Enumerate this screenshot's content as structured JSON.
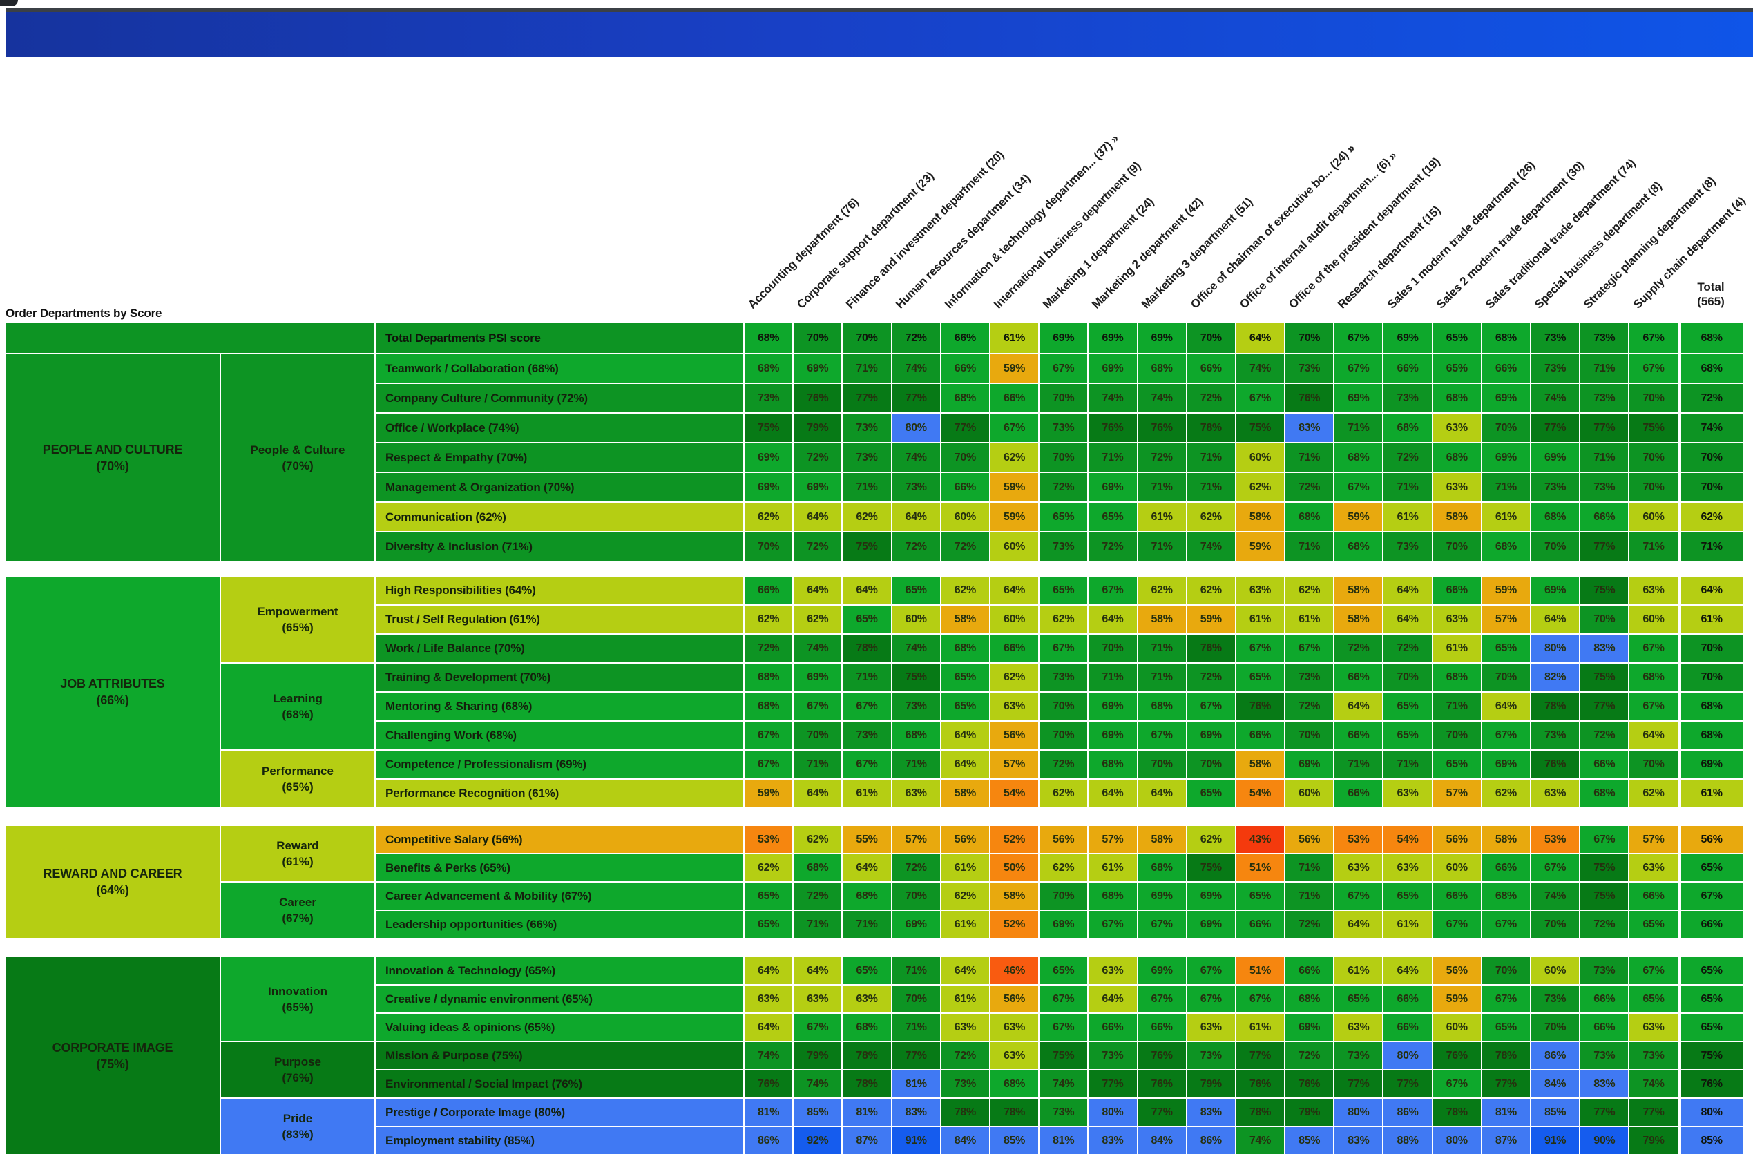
{
  "title": "Order Departments by Score",
  "banner": {
    "top_edge_color": "#3b4046",
    "gradient_left": "#16339e",
    "gradient_mid": "#1840c6",
    "gradient_right": "#0f55e8"
  },
  "palette": {
    "text_dark": "#26300f",
    "white_grid": "#ffffff"
  },
  "chart_data": {
    "type": "heatmap",
    "title": "Order Departments by Score",
    "legend_note": "cell color encodes score: red <45%, orange 45-59%, yellow-green 60-64%, green 65-79%, blue 80%+",
    "color_scale": {
      "ge90": "#155cee",
      "ge80": "#4079f3",
      "ge75": "#077a16",
      "ge70": "#0d9423",
      "ge65": "#0ea82c",
      "ge60": "#b5ce13",
      "ge55": "#e8a90e",
      "ge50": "#f6860f",
      "ge45": "#f95b10",
      "lt45": "#f43a0d"
    },
    "columns": [
      "Accounting department (76)",
      "Corporate support department (23)",
      "Finance and investment department (20)",
      "Human resources department (34)",
      "Information & technology departmen... (37) »",
      "International business department (9)",
      "Marketing 1 department (24)",
      "Marketing 2 department (42)",
      "Marketing 3 department (51)",
      "Office of chairman of executive bo... (24) »",
      "Office of internal audit departmen... (6) »",
      "Office of the president department (19)",
      "Research department (15)",
      "Sales 1 modern trade department (26)",
      "Sales 2 modern trade department (30)",
      "Sales traditional trade department (74)",
      "Special business department (8)",
      "Strategic planning department (8)",
      "Supply chain department (4)",
      "Total (565)"
    ],
    "total_header": {
      "line1": "Total",
      "line2": "(565)"
    },
    "total_row": {
      "label": "Total Departments PSI score",
      "tone": 70,
      "values": [
        68,
        70,
        70,
        72,
        66,
        61,
        69,
        69,
        69,
        70,
        64,
        70,
        67,
        69,
        65,
        68,
        73,
        73,
        67,
        68
      ]
    },
    "sections": [
      {
        "name": "PEOPLE AND CULTURE",
        "score": "70%",
        "subgroups": [
          {
            "name": "People & Culture",
            "score": "70%",
            "rows": [
              {
                "label": "Teamwork / Collaboration (68%)",
                "pct": 68,
                "values": [
                  68,
                  69,
                  71,
                  74,
                  66,
                  59,
                  67,
                  69,
                  68,
                  66,
                  74,
                  73,
                  67,
                  66,
                  65,
                  66,
                  73,
                  71,
                  67,
                  68
                ]
              },
              {
                "label": "Company Culture / Community (72%)",
                "pct": 72,
                "values": [
                  73,
                  76,
                  77,
                  77,
                  68,
                  66,
                  70,
                  74,
                  74,
                  72,
                  67,
                  76,
                  69,
                  73,
                  68,
                  69,
                  74,
                  73,
                  70,
                  72
                ]
              },
              {
                "label": "Office / Workplace (74%)",
                "pct": 74,
                "values": [
                  75,
                  79,
                  73,
                  80,
                  77,
                  67,
                  73,
                  76,
                  76,
                  78,
                  75,
                  83,
                  71,
                  68,
                  63,
                  70,
                  77,
                  77,
                  75,
                  74
                ]
              },
              {
                "label": "Respect & Empathy (70%)",
                "pct": 70,
                "values": [
                  69,
                  72,
                  73,
                  74,
                  70,
                  62,
                  70,
                  71,
                  72,
                  71,
                  60,
                  71,
                  68,
                  72,
                  68,
                  69,
                  69,
                  71,
                  70,
                  70
                ]
              },
              {
                "label": "Management & Organization (70%)",
                "pct": 70,
                "values": [
                  69,
                  69,
                  71,
                  73,
                  66,
                  59,
                  72,
                  69,
                  71,
                  71,
                  62,
                  72,
                  67,
                  71,
                  63,
                  71,
                  73,
                  73,
                  70,
                  70
                ]
              },
              {
                "label": "Communication (62%)",
                "pct": 62,
                "values": [
                  62,
                  64,
                  62,
                  64,
                  60,
                  59,
                  65,
                  65,
                  61,
                  62,
                  58,
                  68,
                  59,
                  61,
                  58,
                  61,
                  68,
                  66,
                  60,
                  62
                ]
              },
              {
                "label": "Diversity & Inclusion (71%)",
                "pct": 71,
                "values": [
                  70,
                  72,
                  75,
                  72,
                  72,
                  60,
                  73,
                  72,
                  71,
                  74,
                  59,
                  71,
                  68,
                  73,
                  70,
                  68,
                  70,
                  77,
                  71,
                  71
                ]
              }
            ]
          }
        ]
      },
      {
        "name": "JOB ATTRIBUTES",
        "score": "66%",
        "subgroups": [
          {
            "name": "Empowerment",
            "score": "65%",
            "tone": 64,
            "rows": [
              {
                "label": "High Responsibilities (64%)",
                "pct": 64,
                "values": [
                  66,
                  64,
                  64,
                  65,
                  62,
                  64,
                  65,
                  67,
                  62,
                  62,
                  63,
                  62,
                  58,
                  64,
                  66,
                  59,
                  69,
                  75,
                  63,
                  64
                ]
              },
              {
                "label": "Trust / Self Regulation (61%)",
                "pct": 61,
                "values": [
                  62,
                  62,
                  65,
                  60,
                  58,
                  60,
                  62,
                  64,
                  58,
                  59,
                  61,
                  61,
                  58,
                  64,
                  63,
                  57,
                  64,
                  70,
                  60,
                  61
                ]
              },
              {
                "label": "Work / Life Balance (70%)",
                "pct": 70,
                "values": [
                  72,
                  74,
                  78,
                  74,
                  68,
                  66,
                  67,
                  70,
                  71,
                  76,
                  67,
                  67,
                  72,
                  72,
                  61,
                  65,
                  80,
                  83,
                  67,
                  70
                ]
              }
            ]
          },
          {
            "name": "Learning",
            "score": "68%",
            "rows": [
              {
                "label": "Training & Development (70%)",
                "pct": 70,
                "values": [
                  68,
                  69,
                  71,
                  75,
                  65,
                  62,
                  73,
                  71,
                  71,
                  72,
                  65,
                  73,
                  66,
                  70,
                  68,
                  70,
                  82,
                  75,
                  68,
                  70
                ]
              },
              {
                "label": "Mentoring & Sharing (68%)",
                "pct": 68,
                "values": [
                  68,
                  67,
                  67,
                  73,
                  65,
                  63,
                  70,
                  69,
                  68,
                  67,
                  76,
                  72,
                  64,
                  65,
                  71,
                  64,
                  78,
                  77,
                  67,
                  68
                ]
              },
              {
                "label": "Challenging Work (68%)",
                "pct": 68,
                "values": [
                  67,
                  70,
                  73,
                  68,
                  64,
                  56,
                  70,
                  69,
                  67,
                  69,
                  66,
                  70,
                  66,
                  65,
                  70,
                  67,
                  73,
                  72,
                  64,
                  68
                ]
              }
            ]
          },
          {
            "name": "Performance",
            "score": "65%",
            "tone": 64,
            "rows": [
              {
                "label": "Competence / Professionalism (69%)",
                "pct": 69,
                "values": [
                  67,
                  71,
                  67,
                  71,
                  64,
                  57,
                  72,
                  68,
                  70,
                  70,
                  58,
                  69,
                  71,
                  71,
                  65,
                  69,
                  76,
                  66,
                  70,
                  69
                ]
              },
              {
                "label": "Performance Recognition (61%)",
                "pct": 61,
                "values": [
                  59,
                  64,
                  61,
                  63,
                  58,
                  54,
                  62,
                  64,
                  64,
                  65,
                  54,
                  60,
                  66,
                  63,
                  57,
                  62,
                  63,
                  68,
                  62,
                  61
                ]
              }
            ]
          }
        ]
      },
      {
        "name": "REWARD AND CAREER",
        "score": "64%",
        "subgroups": [
          {
            "name": "Reward",
            "score": "61%",
            "rows": [
              {
                "label": "Competitive Salary (56%)",
                "pct": 56,
                "values": [
                  53,
                  62,
                  55,
                  57,
                  56,
                  52,
                  56,
                  57,
                  58,
                  62,
                  43,
                  56,
                  53,
                  54,
                  56,
                  58,
                  53,
                  67,
                  57,
                  56
                ]
              },
              {
                "label": "Benefits & Perks (65%)",
                "pct": 65,
                "values": [
                  62,
                  68,
                  64,
                  72,
                  61,
                  50,
                  62,
                  61,
                  68,
                  75,
                  51,
                  71,
                  63,
                  63,
                  60,
                  66,
                  67,
                  75,
                  63,
                  65
                ]
              }
            ]
          },
          {
            "name": "Career",
            "score": "67%",
            "rows": [
              {
                "label": "Career Advancement & Mobility (67%)",
                "pct": 67,
                "values": [
                  65,
                  72,
                  68,
                  70,
                  62,
                  58,
                  70,
                  68,
                  69,
                  69,
                  65,
                  71,
                  67,
                  65,
                  66,
                  68,
                  74,
                  75,
                  66,
                  67
                ]
              },
              {
                "label": "Leadership opportunities (66%)",
                "pct": 66,
                "values": [
                  65,
                  71,
                  71,
                  69,
                  61,
                  52,
                  69,
                  67,
                  67,
                  69,
                  66,
                  72,
                  64,
                  61,
                  67,
                  67,
                  70,
                  72,
                  65,
                  66
                ]
              }
            ]
          }
        ]
      },
      {
        "name": "CORPORATE IMAGE",
        "score": "75%",
        "subgroups": [
          {
            "name": "Innovation",
            "score": "65%",
            "rows": [
              {
                "label": "Innovation & Technology (65%)",
                "pct": 65,
                "values": [
                  64,
                  64,
                  65,
                  71,
                  64,
                  46,
                  65,
                  63,
                  69,
                  67,
                  51,
                  66,
                  61,
                  64,
                  56,
                  70,
                  60,
                  73,
                  67,
                  65
                ]
              },
              {
                "label": "Creative / dynamic environment (65%)",
                "pct": 65,
                "values": [
                  63,
                  63,
                  63,
                  70,
                  61,
                  56,
                  67,
                  64,
                  67,
                  67,
                  67,
                  68,
                  65,
                  66,
                  59,
                  67,
                  73,
                  66,
                  65,
                  65
                ]
              },
              {
                "label": "Valuing ideas & opinions (65%)",
                "pct": 65,
                "values": [
                  64,
                  67,
                  68,
                  71,
                  63,
                  63,
                  67,
                  66,
                  66,
                  63,
                  61,
                  69,
                  63,
                  66,
                  60,
                  65,
                  70,
                  66,
                  63,
                  65
                ]
              }
            ]
          },
          {
            "name": "Purpose",
            "score": "76%",
            "rows": [
              {
                "label": "Mission & Purpose (75%)",
                "pct": 75,
                "values": [
                  74,
                  79,
                  78,
                  77,
                  72,
                  63,
                  75,
                  73,
                  76,
                  73,
                  77,
                  72,
                  73,
                  80,
                  76,
                  78,
                  86,
                  73,
                  73,
                  75
                ]
              },
              {
                "label": "Environmental / Social Impact (76%)",
                "pct": 76,
                "values": [
                  76,
                  74,
                  78,
                  81,
                  73,
                  68,
                  74,
                  77,
                  76,
                  79,
                  76,
                  76,
                  77,
                  77,
                  67,
                  77,
                  84,
                  83,
                  74,
                  76
                ]
              }
            ]
          },
          {
            "name": "Pride",
            "score": "83%",
            "rows": [
              {
                "label": "Prestige / Corporate Image (80%)",
                "pct": 80,
                "values": [
                  81,
                  85,
                  81,
                  83,
                  78,
                  78,
                  73,
                  80,
                  77,
                  83,
                  78,
                  79,
                  80,
                  86,
                  78,
                  81,
                  85,
                  77,
                  77,
                  80
                ]
              },
              {
                "label": "Employment stability (85%)",
                "pct": 85,
                "values": [
                  86,
                  92,
                  87,
                  91,
                  84,
                  85,
                  81,
                  83,
                  84,
                  86,
                  74,
                  85,
                  83,
                  88,
                  80,
                  87,
                  91,
                  90,
                  79,
                  85
                ]
              }
            ]
          }
        ]
      }
    ]
  }
}
